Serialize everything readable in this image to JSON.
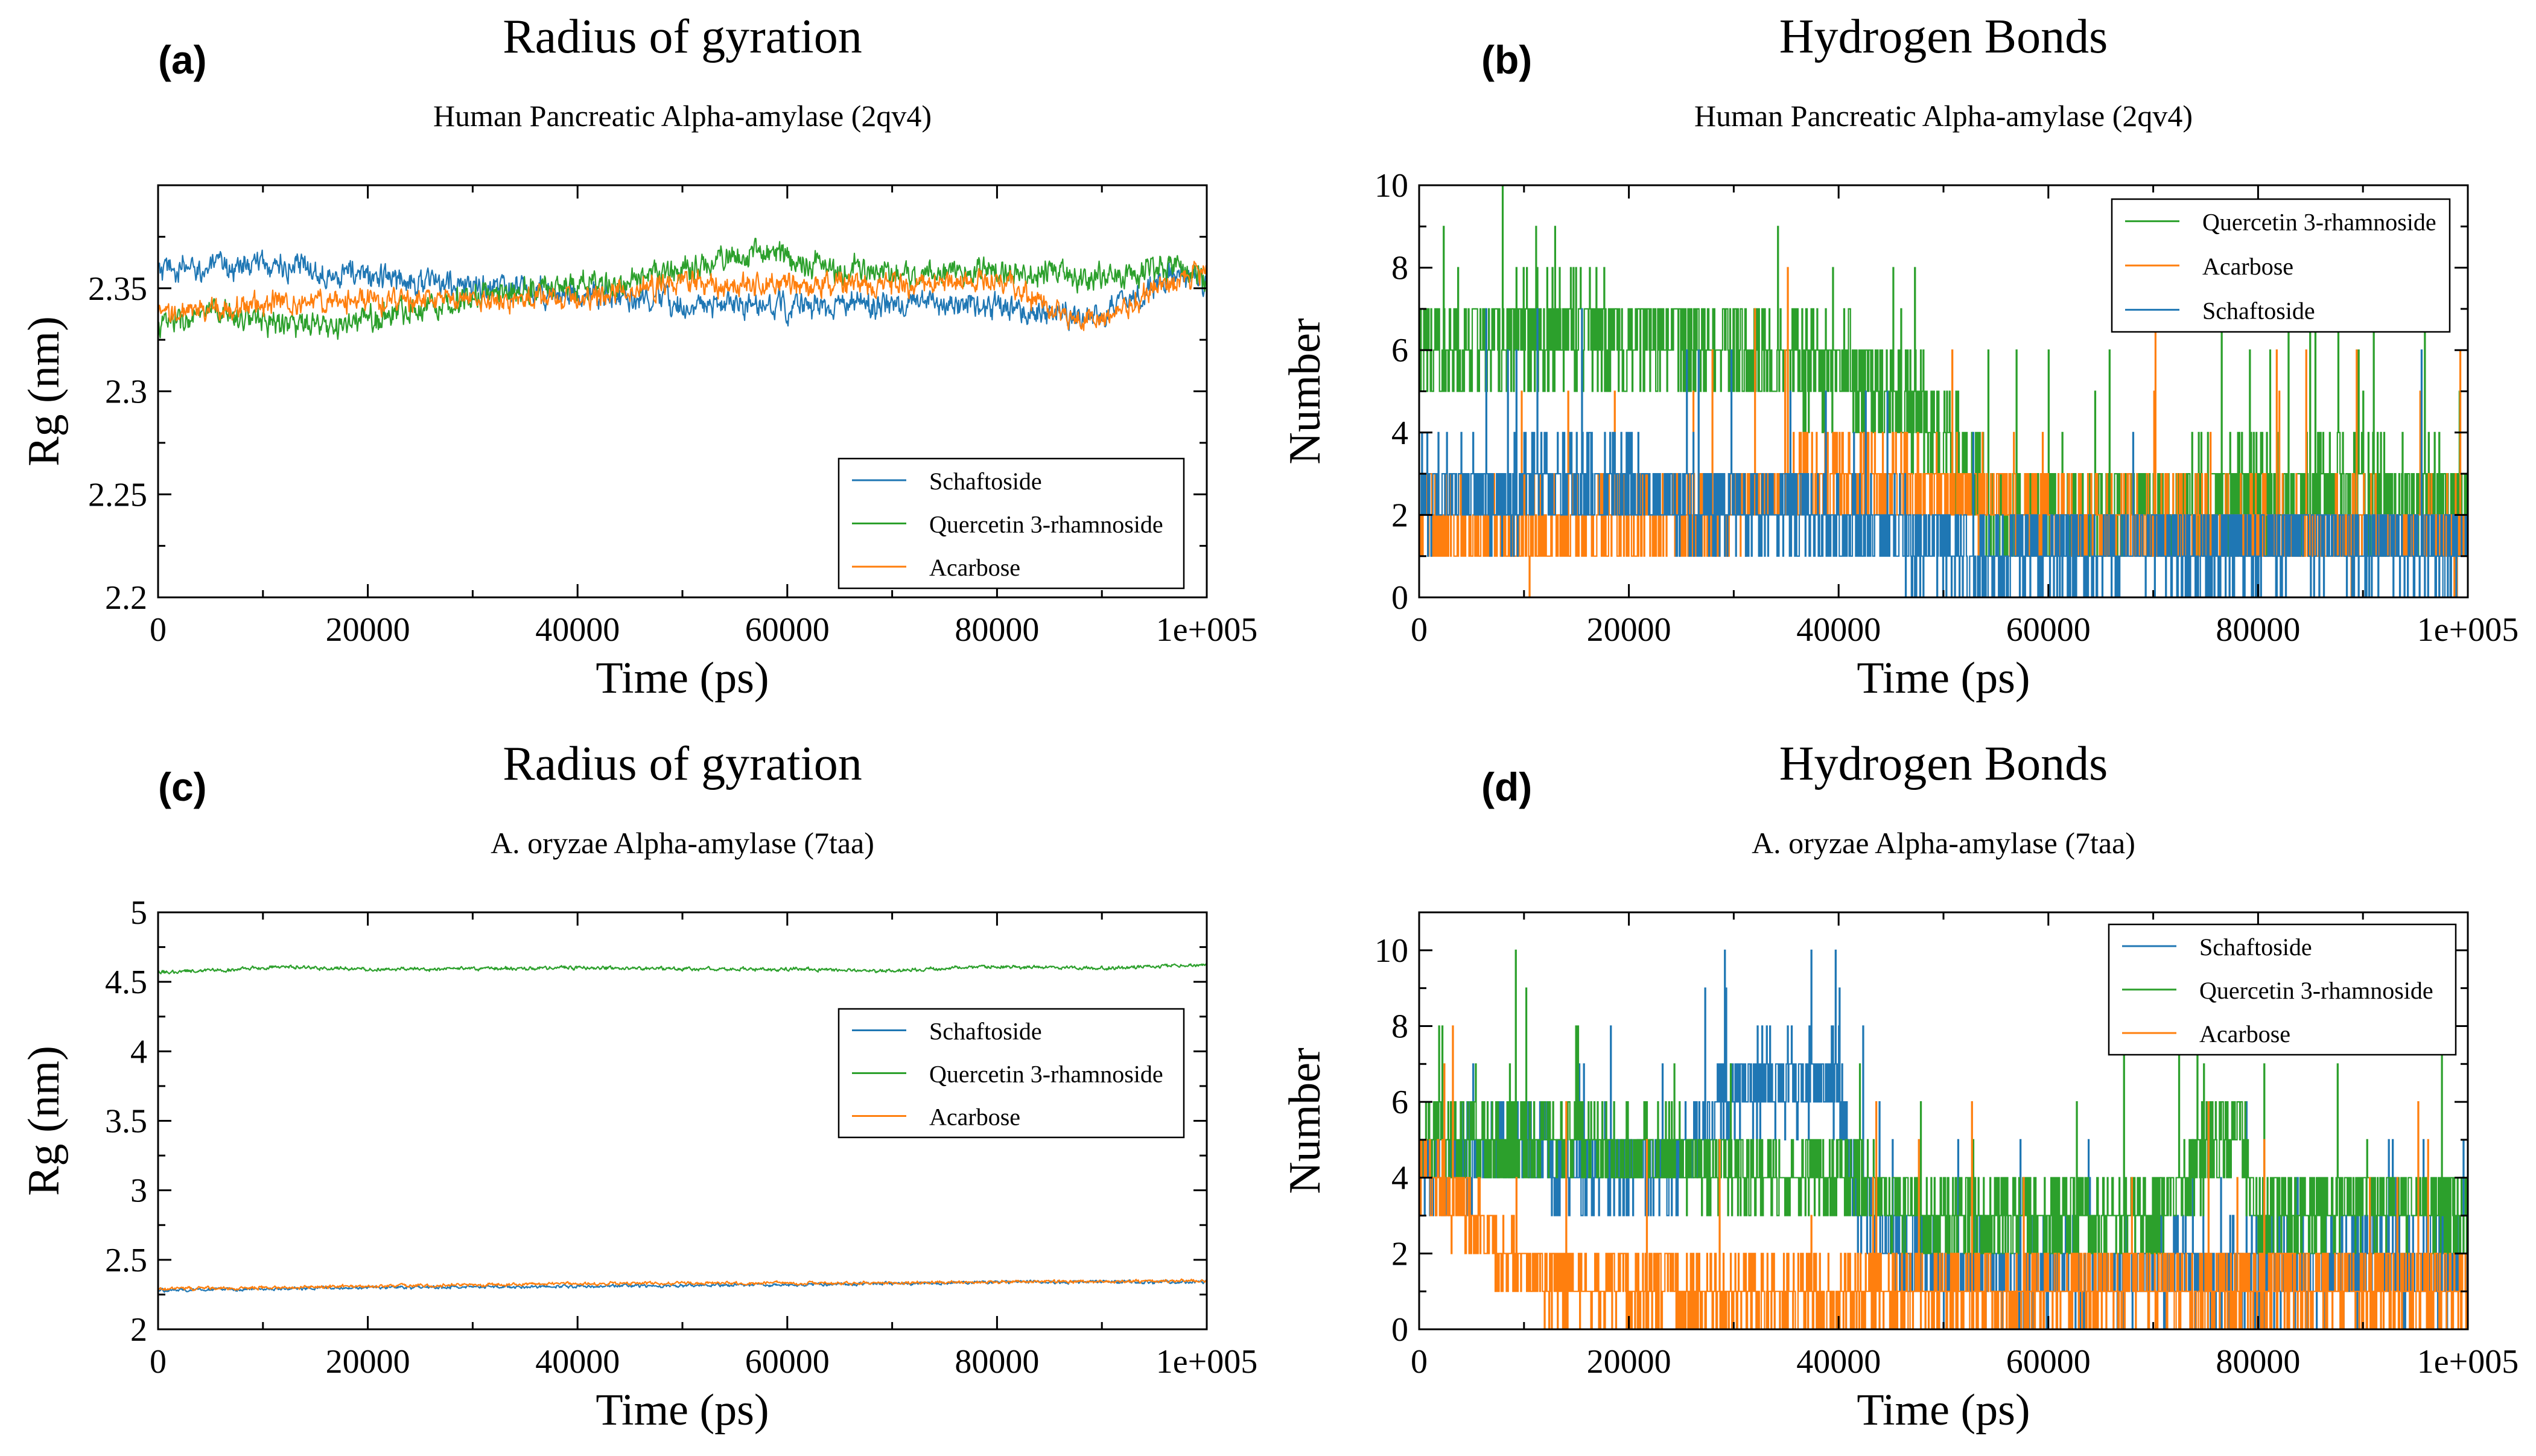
{
  "chart_data": [
    {
      "id": "a",
      "panel_label": "(a)",
      "type": "line",
      "title": "Radius of gyration",
      "subtitle": "Human Pancreatic Alpha-amylase (2qv4)",
      "xlabel": "Time (ps)",
      "ylabel": "Rg (nm)",
      "xlim": [
        0,
        100000
      ],
      "ylim": [
        2.2,
        2.4
      ],
      "xticks": [
        0,
        20000,
        40000,
        60000,
        80000,
        100000
      ],
      "xtick_labels": [
        "0",
        "20000",
        "40000",
        "60000",
        "80000",
        "1e+005"
      ],
      "yticks": [
        2.2,
        2.25,
        2.3,
        2.35
      ],
      "ytick_labels": [
        "2.2",
        "2.25",
        "2.3",
        "2.35"
      ],
      "legend_position": "bottom-right",
      "series": [
        {
          "name": "Schaftoside",
          "color": "#1f77b4",
          "style": "noisy",
          "x": [
            0,
            10000,
            20000,
            30000,
            40000,
            50000,
            60000,
            70000,
            80000,
            90000,
            97000,
            100000
          ],
          "y": [
            2.358,
            2.362,
            2.356,
            2.351,
            2.347,
            2.342,
            2.341,
            2.342,
            2.341,
            2.337,
            2.358,
            2.352
          ],
          "noise": 0.0045
        },
        {
          "name": "Quercetin 3-rhamnoside",
          "color": "#2ca02c",
          "style": "noisy",
          "x": [
            0,
            6000,
            16000,
            25000,
            35000,
            45000,
            52000,
            58000,
            65000,
            72000,
            80000,
            90000,
            97000,
            100000
          ],
          "y": [
            2.332,
            2.338,
            2.33,
            2.341,
            2.35,
            2.352,
            2.362,
            2.368,
            2.358,
            2.357,
            2.358,
            2.355,
            2.362,
            2.352
          ],
          "noise": 0.0045
        },
        {
          "name": "Acarbose",
          "color": "#ff7f0e",
          "style": "noisy",
          "x": [
            0,
            10000,
            20000,
            30000,
            40000,
            50000,
            60000,
            70000,
            80000,
            86000,
            90000,
            95000,
            100000
          ],
          "y": [
            2.336,
            2.343,
            2.344,
            2.344,
            2.345,
            2.353,
            2.352,
            2.351,
            2.355,
            2.338,
            2.334,
            2.35,
            2.358
          ],
          "noise": 0.004
        }
      ]
    },
    {
      "id": "b",
      "panel_label": "(b)",
      "type": "line",
      "title": "Hydrogen Bonds",
      "subtitle": "Human Pancreatic Alpha-amylase (2qv4)",
      "xlabel": "Time (ps)",
      "ylabel": "Number",
      "xlim": [
        0,
        100000
      ],
      "ylim": [
        0,
        10
      ],
      "xticks": [
        0,
        20000,
        40000,
        60000,
        80000,
        100000
      ],
      "xtick_labels": [
        "0",
        "20000",
        "40000",
        "60000",
        "80000",
        "1e+005"
      ],
      "yticks": [
        0,
        2,
        4,
        6,
        8,
        10
      ],
      "ytick_labels": [
        "0",
        "2",
        "4",
        "6",
        "8",
        "10"
      ],
      "legend_position": "top-right",
      "series": [
        {
          "name": "Quercetin 3-rhamnoside",
          "color": "#2ca02c",
          "style": "step",
          "x": [
            0,
            15000,
            30000,
            40000,
            48000,
            55000,
            70000,
            85000,
            100000
          ],
          "y": [
            6,
            6.5,
            6,
            5.5,
            4.5,
            2,
            2.2,
            2.5,
            2.2
          ],
          "noise": 1.3
        },
        {
          "name": "Acarbose",
          "color": "#ff7f0e",
          "style": "step",
          "x": [
            0,
            10000,
            25000,
            40000,
            50000,
            60000,
            70000,
            85000,
            100000
          ],
          "y": [
            2,
            1.5,
            2,
            3,
            2.5,
            2,
            1.7,
            1.6,
            1.5
          ],
          "noise": 1.1
        },
        {
          "name": "Schaftoside",
          "color": "#1f77b4",
          "style": "step",
          "x": [
            0,
            10000,
            15000,
            25000,
            35000,
            45000,
            55000,
            70000,
            85000,
            100000
          ],
          "y": [
            2.5,
            2.5,
            3,
            2.3,
            2,
            1.5,
            1,
            1.2,
            1.4,
            1.2
          ],
          "noise": 1.1
        }
      ]
    },
    {
      "id": "c",
      "panel_label": "(c)",
      "type": "line",
      "title": "Radius of gyration",
      "subtitle": "A. oryzae Alpha-amylase (7taa)",
      "xlabel": "Time (ps)",
      "ylabel": "Rg (nm)",
      "xlim": [
        0,
        100000
      ],
      "ylim": [
        2,
        5
      ],
      "xticks": [
        0,
        20000,
        40000,
        60000,
        80000,
        100000
      ],
      "xtick_labels": [
        "0",
        "20000",
        "40000",
        "60000",
        "80000",
        "1e+005"
      ],
      "yticks": [
        2,
        2.5,
        3,
        3.5,
        4,
        4.5,
        5
      ],
      "ytick_labels": [
        "2",
        "2.5",
        "3",
        "3.5",
        "4",
        "4.5",
        "5"
      ],
      "legend_position": "right",
      "series": [
        {
          "name": "Schaftoside",
          "color": "#1f77b4",
          "style": "noisy",
          "x": [
            0,
            20000,
            40000,
            60000,
            80000,
            100000
          ],
          "y": [
            2.28,
            2.3,
            2.31,
            2.32,
            2.34,
            2.34
          ],
          "noise": 0.008
        },
        {
          "name": "Quercetin 3-rhamnoside",
          "color": "#2ca02c",
          "style": "noisy",
          "x": [
            0,
            5000,
            12000,
            20000,
            40000,
            60000,
            70000,
            80000,
            90000,
            100000
          ],
          "y": [
            4.57,
            4.58,
            4.61,
            4.59,
            4.6,
            4.59,
            4.58,
            4.61,
            4.6,
            4.62
          ],
          "noise": 0.009
        },
        {
          "name": "Acarbose",
          "color": "#ff7f0e",
          "style": "noisy",
          "x": [
            0,
            20000,
            40000,
            60000,
            80000,
            100000
          ],
          "y": [
            2.29,
            2.31,
            2.33,
            2.33,
            2.34,
            2.35
          ],
          "noise": 0.008
        }
      ]
    },
    {
      "id": "d",
      "panel_label": "(d)",
      "type": "line",
      "title": "Hydrogen Bonds",
      "subtitle": "A. oryzae Alpha-amylase (7taa)",
      "xlabel": "Time (ps)",
      "ylabel": "Number",
      "xlim": [
        0,
        100000
      ],
      "ylim": [
        0,
        11
      ],
      "xticks": [
        0,
        20000,
        40000,
        60000,
        80000,
        100000
      ],
      "xtick_labels": [
        "0",
        "20000",
        "40000",
        "60000",
        "80000",
        "1e+005"
      ],
      "yticks": [
        0,
        2,
        4,
        6,
        8,
        10
      ],
      "ytick_labels": [
        "0",
        "2",
        "4",
        "6",
        "8",
        "10"
      ],
      "legend_position": "top-right",
      "series": [
        {
          "name": "Schaftoside",
          "color": "#1f77b4",
          "style": "step",
          "x": [
            0,
            10000,
            15000,
            25000,
            30000,
            40000,
            42000,
            50000,
            70000,
            100000
          ],
          "y": [
            4,
            5,
            4,
            4.5,
            6.5,
            6.5,
            3,
            1.5,
            1.5,
            1.5
          ],
          "noise": 1.2
        },
        {
          "name": "Quercetin 3-rhamnoside",
          "color": "#2ca02c",
          "style": "step",
          "x": [
            0,
            10000,
            25000,
            40000,
            50000,
            60000,
            70000,
            78000,
            80000,
            90000,
            100000
          ],
          "y": [
            5,
            5,
            4.5,
            4,
            3,
            3,
            3,
            5.5,
            3,
            3.5,
            3
          ],
          "noise": 1.1
        },
        {
          "name": "Acarbose",
          "color": "#ff7f0e",
          "style": "step",
          "x": [
            0,
            5000,
            10000,
            20000,
            40000,
            60000,
            80000,
            100000
          ],
          "y": [
            4,
            3,
            1.5,
            1,
            0.8,
            1,
            1.2,
            1
          ],
          "noise": 1.0
        }
      ]
    }
  ]
}
